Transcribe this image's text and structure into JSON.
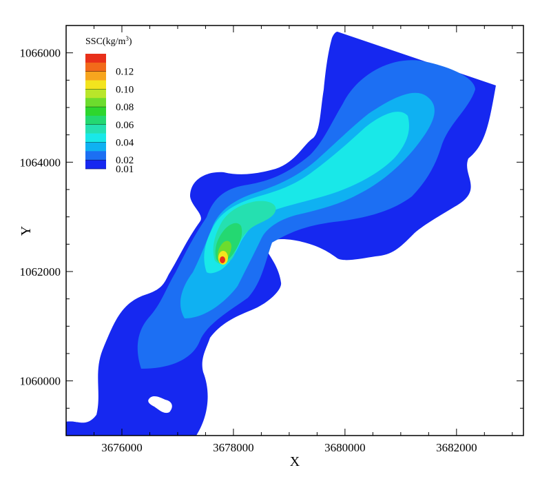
{
  "chart_data": {
    "type": "heatmap",
    "subtype": "filled-contour-map",
    "xlabel": "X",
    "ylabel": "Y",
    "xlim": [
      3675000,
      3683200
    ],
    "ylim": [
      1059000,
      1066500
    ],
    "xticks": [
      3676000,
      3678000,
      3680000,
      3682000
    ],
    "xtick_labels": [
      "3676000",
      "3678000",
      "3680000",
      "3682000"
    ],
    "yticks": [
      1060000,
      1062000,
      1064000,
      1066000
    ],
    "ytick_labels": [
      "1060000",
      "1062000",
      "1064000",
      "1066000"
    ],
    "legend": {
      "title": "SSC(kg/m",
      "title_sup": "3",
      "title_end": ")",
      "placement": "top-left",
      "levels": [
        {
          "value": 0.13,
          "color": "#e8301a"
        },
        {
          "value": 0.12,
          "color": "#f26a1a"
        },
        {
          "value": 0.11,
          "color": "#f7a51e"
        },
        {
          "value": 0.1,
          "color": "#f3e41e"
        },
        {
          "value": 0.09,
          "color": "#b9e62a"
        },
        {
          "value": 0.08,
          "color": "#6ddc2d"
        },
        {
          "value": 0.07,
          "color": "#2ed62e"
        },
        {
          "value": 0.06,
          "color": "#24d871"
        },
        {
          "value": 0.05,
          "color": "#25e0b0"
        },
        {
          "value": 0.04,
          "color": "#19e8e8"
        },
        {
          "value": 0.03,
          "color": "#0fb1f2"
        },
        {
          "value": 0.02,
          "color": "#1c6ff3"
        },
        {
          "value": 0.01,
          "color": "#1628f0"
        }
      ],
      "labels": [
        "0.12",
        "0.10",
        "0.08",
        "0.06",
        "0.04",
        "0.02",
        "0.01"
      ],
      "label_values": [
        0.12,
        0.1,
        0.08,
        0.06,
        0.04,
        0.02,
        0.01
      ]
    },
    "peak": {
      "x": 3677900,
      "y": 1062200,
      "value": 0.13
    },
    "contour_bands": [
      {
        "level": 0.01,
        "color": "#1628f0"
      },
      {
        "level": 0.02,
        "color": "#1c6ff3"
      },
      {
        "level": 0.03,
        "color": "#0fb1f2"
      },
      {
        "level": 0.04,
        "color": "#19e8e8"
      },
      {
        "level": 0.05,
        "color": "#25e0b0"
      },
      {
        "level": 0.06,
        "color": "#24d871"
      },
      {
        "level": 0.08,
        "color": "#6ddc2d"
      },
      {
        "level": 0.1,
        "color": "#f3e41e"
      },
      {
        "level": 0.13,
        "color": "#e8301a"
      }
    ],
    "grid": false
  }
}
